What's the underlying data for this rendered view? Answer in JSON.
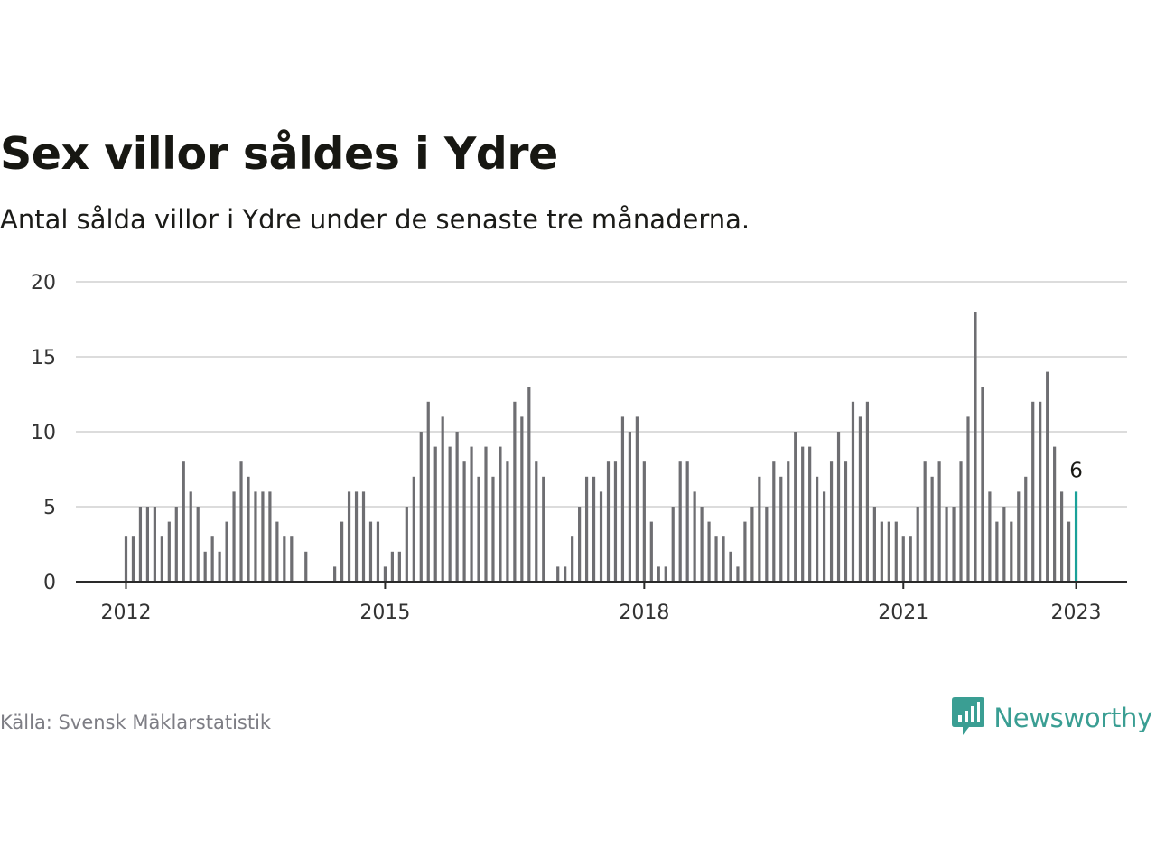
{
  "title": "Sex villor såldes i Ydre",
  "subtitle": "Antal sålda villor i Ydre under de senaste tre månaderna.",
  "source": "Källa: Svensk Mäklarstatistik",
  "brand": {
    "name": "Newsworthy",
    "icon": "newsworthy-logo-icon",
    "color": "#3a9e93"
  },
  "colors": {
    "bar": "#6e6e72",
    "highlight": "#1aa199",
    "grid": "#dcdcdc",
    "axis": "#2a2a2a"
  },
  "chart_data": {
    "type": "bar",
    "start": "2012-01",
    "ylim": [
      0,
      20
    ],
    "yticks": [
      "0",
      "5",
      "10",
      "15",
      "20"
    ],
    "xticks": [
      "2012",
      "2015",
      "2018",
      "2021",
      "2023"
    ],
    "values": [
      3,
      3,
      5,
      5,
      5,
      3,
      4,
      5,
      8,
      6,
      5,
      2,
      3,
      2,
      4,
      6,
      8,
      7,
      6,
      6,
      6,
      4,
      3,
      3,
      null,
      2,
      null,
      null,
      null,
      1,
      4,
      6,
      6,
      6,
      4,
      4,
      1,
      2,
      2,
      5,
      7,
      10,
      12,
      9,
      11,
      9,
      10,
      8,
      9,
      7,
      9,
      7,
      9,
      8,
      12,
      11,
      13,
      8,
      7,
      null,
      1,
      1,
      3,
      5,
      7,
      7,
      6,
      8,
      8,
      11,
      10,
      11,
      8,
      4,
      1,
      1,
      5,
      8,
      8,
      6,
      5,
      4,
      3,
      3,
      2,
      1,
      4,
      5,
      7,
      5,
      8,
      7,
      8,
      10,
      9,
      9,
      7,
      6,
      8,
      10,
      8,
      12,
      11,
      12,
      5,
      4,
      4,
      4,
      3,
      3,
      5,
      8,
      7,
      8,
      5,
      5,
      8,
      11,
      18,
      13,
      6,
      4,
      5,
      4,
      6,
      7,
      12,
      12,
      14,
      9,
      6,
      4,
      6
    ],
    "highlight_label": "6",
    "grid": true
  }
}
